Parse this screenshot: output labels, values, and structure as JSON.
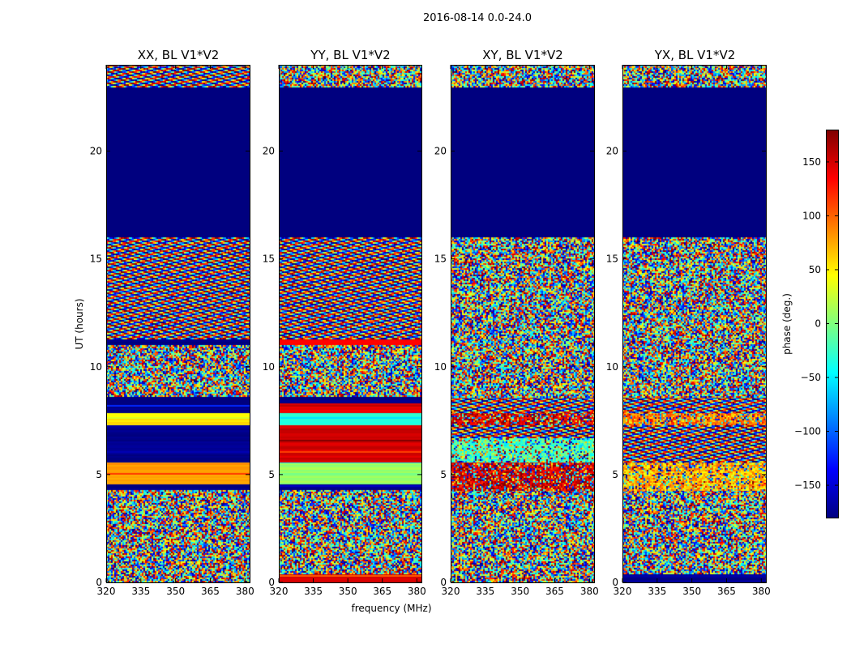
{
  "figure": {
    "suptitle": "2016-08-14 0.0-24.0",
    "xlabel": "frequency (MHz)",
    "ylabel": "UT (hours)",
    "colorbar_label": "phase (deg.)",
    "colormap": [
      "#00007f",
      "#0000ff",
      "#007fff",
      "#00ffff",
      "#7fff7f",
      "#ffff00",
      "#ff7f00",
      "#ff0000",
      "#7f0000"
    ],
    "masked_color": "#00007f"
  },
  "chart_data": {
    "type": "heatmap",
    "x_range": [
      320,
      382
    ],
    "y_range": [
      0,
      24
    ],
    "x_ticks": [
      320,
      335,
      350,
      365,
      380
    ],
    "y_ticks": [
      0,
      5,
      10,
      15,
      20
    ],
    "color_range": [
      -180,
      180
    ],
    "colorbar_ticks": [
      -150,
      -100,
      -50,
      0,
      50,
      100,
      150
    ],
    "colorbar_tick_labels": [
      "−150",
      "−100",
      "−50",
      "0",
      "50",
      "100",
      "150"
    ],
    "no_data_hours": [
      16.0,
      23.0
    ],
    "panels": [
      {
        "title": "XX, BL V1*V2",
        "segments": [
          {
            "from": 0.0,
            "to": 4.3,
            "pattern": "noise"
          },
          {
            "from": 4.3,
            "to": 4.6,
            "pattern": "dark"
          },
          {
            "from": 4.6,
            "to": 5.6,
            "pattern": "solid",
            "phase": 80
          },
          {
            "from": 5.6,
            "to": 5.8,
            "pattern": "dark"
          },
          {
            "from": 5.8,
            "to": 7.3,
            "pattern": "solid",
            "phase": -175
          },
          {
            "from": 7.3,
            "to": 7.6,
            "pattern": "solid",
            "phase": 55
          },
          {
            "from": 7.6,
            "to": 7.9,
            "pattern": "solid",
            "phase": 40
          },
          {
            "from": 7.9,
            "to": 8.6,
            "pattern": "solid",
            "phase": -178
          },
          {
            "from": 8.6,
            "to": 11.0,
            "pattern": "noise"
          },
          {
            "from": 11.0,
            "to": 11.3,
            "pattern": "solid",
            "phase": -175
          },
          {
            "from": 11.3,
            "to": 16.0,
            "pattern": "fringes"
          },
          {
            "from": 23.0,
            "to": 24.0,
            "pattern": "fringes"
          }
        ]
      },
      {
        "title": "YY, BL V1*V2",
        "segments": [
          {
            "from": 0.0,
            "to": 0.4,
            "pattern": "solid",
            "phase": 150
          },
          {
            "from": 0.4,
            "to": 4.3,
            "pattern": "noise"
          },
          {
            "from": 4.3,
            "to": 4.6,
            "pattern": "dark"
          },
          {
            "from": 4.6,
            "to": 5.6,
            "pattern": "solid",
            "phase": 10
          },
          {
            "from": 5.6,
            "to": 7.3,
            "pattern": "solid",
            "phase": 150
          },
          {
            "from": 7.3,
            "to": 7.9,
            "pattern": "solid",
            "phase": -30
          },
          {
            "from": 7.9,
            "to": 8.3,
            "pattern": "solid",
            "phase": 140
          },
          {
            "from": 8.3,
            "to": 8.6,
            "pattern": "dark"
          },
          {
            "from": 8.6,
            "to": 11.0,
            "pattern": "noise"
          },
          {
            "from": 11.0,
            "to": 11.3,
            "pattern": "solid",
            "phase": 140
          },
          {
            "from": 11.3,
            "to": 16.0,
            "pattern": "fringes"
          },
          {
            "from": 23.0,
            "to": 24.0,
            "pattern": "noise"
          }
        ]
      },
      {
        "title": "XY, BL V1*V2",
        "segments": [
          {
            "from": 0.0,
            "to": 4.3,
            "pattern": "noise"
          },
          {
            "from": 4.3,
            "to": 5.6,
            "pattern": "band",
            "phase": 150
          },
          {
            "from": 5.6,
            "to": 6.7,
            "pattern": "band",
            "phase": -20
          },
          {
            "from": 6.7,
            "to": 7.3,
            "pattern": "fringes"
          },
          {
            "from": 7.3,
            "to": 7.9,
            "pattern": "band",
            "phase": 150
          },
          {
            "from": 7.9,
            "to": 8.6,
            "pattern": "fringes"
          },
          {
            "from": 8.6,
            "to": 16.0,
            "pattern": "noise"
          },
          {
            "from": 23.0,
            "to": 24.0,
            "pattern": "noise"
          }
        ]
      },
      {
        "title": "YX, BL V1*V2",
        "segments": [
          {
            "from": 0.0,
            "to": 0.4,
            "pattern": "solid",
            "phase": -175
          },
          {
            "from": 0.4,
            "to": 4.3,
            "pattern": "noise"
          },
          {
            "from": 4.3,
            "to": 5.6,
            "pattern": "band",
            "phase": 70
          },
          {
            "from": 5.6,
            "to": 7.3,
            "pattern": "fringes"
          },
          {
            "from": 7.3,
            "to": 7.9,
            "pattern": "band",
            "phase": 90
          },
          {
            "from": 7.9,
            "to": 8.6,
            "pattern": "fringes"
          },
          {
            "from": 8.6,
            "to": 16.0,
            "pattern": "noise"
          },
          {
            "from": 23.0,
            "to": 24.0,
            "pattern": "noise"
          }
        ]
      }
    ]
  }
}
